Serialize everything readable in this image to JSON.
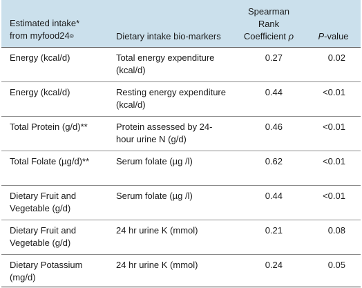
{
  "header": {
    "col1_line1": "Estimated intake*",
    "col1_line2": "from myfood24",
    "col1_mark": "®",
    "col2": "Dietary intake bio-markers",
    "col3_line1": "Spearman",
    "col3_line2": "Rank",
    "col3_line3": "Coefficient",
    "col3_symbol": "ρ",
    "col4_italic": "P",
    "col4_rest": "-value"
  },
  "rows": [
    {
      "intake": "Energy (kcal/d)",
      "biomarker": "Total energy expenditure (kcal/d)",
      "rho": "0.27",
      "p": "0.02"
    },
    {
      "intake": "Energy (kcal/d)",
      "biomarker": "Resting energy expenditure (kcal/d)",
      "rho": "0.44",
      "p": "<0.01"
    },
    {
      "intake": "Total Protein (g/d)**",
      "biomarker": "Protein assessed by 24-hour urine N (g/d)",
      "rho": "0.46",
      "p": "<0.01"
    },
    {
      "intake": "Total Folate (µg/d)**",
      "biomarker": "Serum folate (µg /l)",
      "rho": "0.62",
      "p": "<0.01"
    },
    {
      "intake": "Dietary Fruit and Vegetable (g/d)",
      "biomarker": "Serum folate (µg /l)",
      "rho": "0.44",
      "p": "<0.01"
    },
    {
      "intake": "Dietary Fruit and Vegetable (g/d)",
      "biomarker": "24 hr urine K (mmol)",
      "rho": "0.21",
      "p": "0.08"
    },
    {
      "intake": "Dietary Potassium (mg/d)",
      "biomarker": "24 hr urine K (mmol)",
      "rho": "0.24",
      "p": "0.05"
    }
  ]
}
